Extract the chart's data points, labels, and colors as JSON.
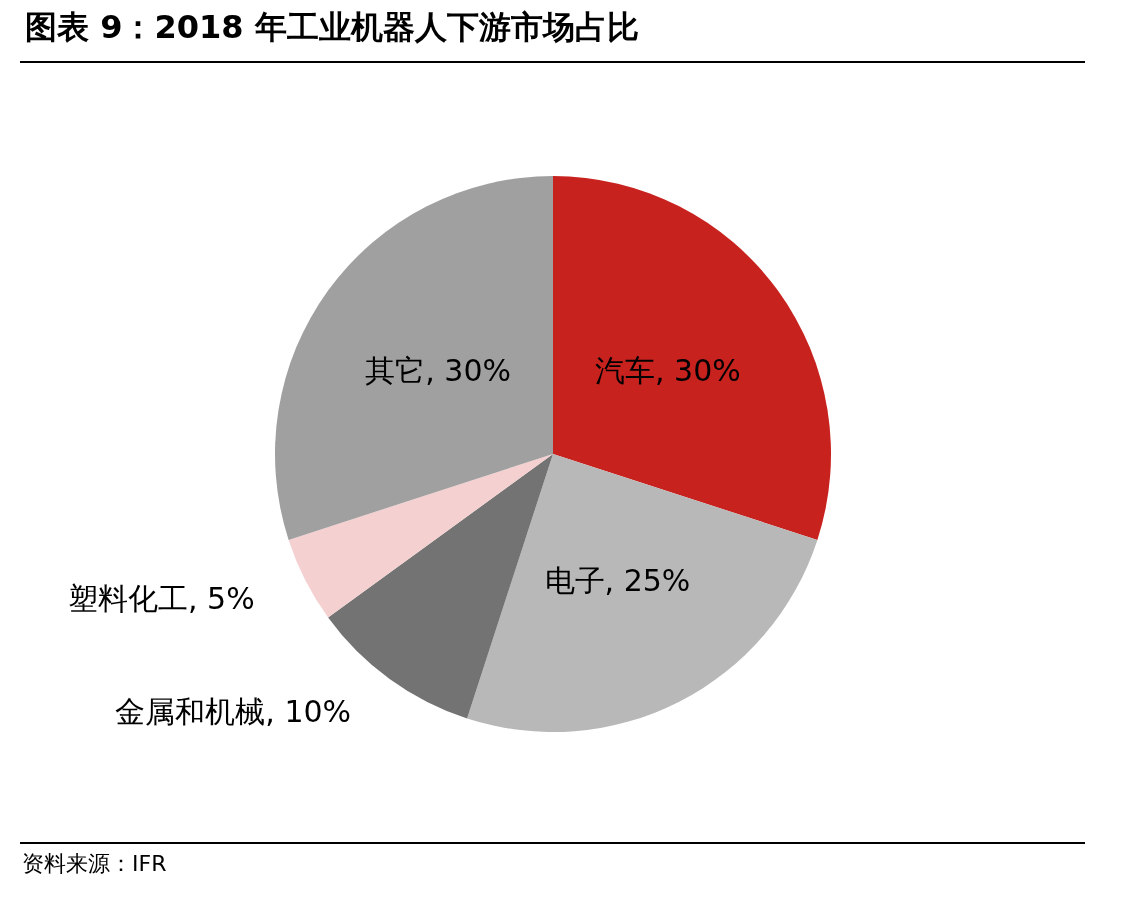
{
  "chart_data": {
    "type": "pie",
    "title": "图表 9：2018 年工业机器人下游市场占比",
    "categories": [
      "汽车",
      "电子",
      "金属和机械",
      "塑料化工",
      "其它"
    ],
    "values": [
      30,
      25,
      10,
      5,
      30
    ],
    "colors": [
      "#c8221f",
      "#b8b8b8",
      "#737373",
      "#f5d0d0",
      "#a0a0a0"
    ],
    "value_labels": [
      "30%",
      "25%",
      "10%",
      "5%",
      "30%"
    ],
    "legend": false,
    "annotations": [
      "资料来源：IFR"
    ]
  }
}
